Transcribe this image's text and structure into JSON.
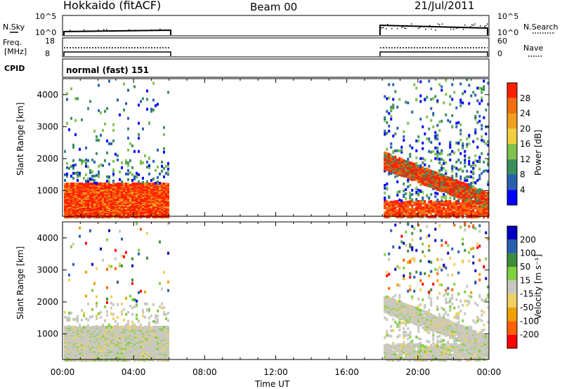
{
  "header": {
    "station": "Hokkaido (fitACF)",
    "beam": "Beam 00",
    "date": "21/Jul/2011"
  },
  "top_panels": {
    "nsky": {
      "label": "N.Sky",
      "tick_high": "10^5",
      "tick_low": "10^0"
    },
    "nsearch": {
      "label": "N.Search",
      "tick_high": "10^5",
      "tick_low": "10^0"
    },
    "freq": {
      "label": "Freq.",
      "unit": "[MHz]",
      "tick_high": "18",
      "tick_low": "8"
    },
    "nave": {
      "label": "Nave",
      "tick_high": "60",
      "tick_low": "0"
    },
    "cpid": {
      "label": "CPID",
      "value": "normal (fast) 151"
    }
  },
  "colors": {
    "power": [
      "#0000ff",
      "#2a5fb0",
      "#3c8f5c",
      "#7fc24e",
      "#f0d040",
      "#f0a020",
      "#f07010",
      "#ff2000"
    ],
    "velocity": [
      "#ff0000",
      "#ff6000",
      "#f0a000",
      "#f0d060",
      "#c8c8c0",
      "#80d040",
      "#3c8c3c",
      "#2a5fb0",
      "#0000c0"
    ]
  },
  "chart_data": [
    {
      "type": "heatmap",
      "name": "power-panel",
      "ylabel": "Slant Range [km]",
      "ylim": [
        200,
        4500
      ],
      "yticks": [
        "1000",
        "2000",
        "3000",
        "4000"
      ],
      "ytick_values": [
        1000,
        2000,
        3000,
        4000
      ],
      "xlim_hours": [
        0,
        24
      ],
      "colorbar": {
        "label": "Power [dB]",
        "ticks": [
          "4",
          "8",
          "12",
          "16",
          "20",
          "24",
          "28"
        ],
        "range": [
          0,
          32
        ]
      },
      "data_intervals_hours": [
        [
          0,
          6
        ],
        [
          18,
          24
        ]
      ]
    },
    {
      "type": "heatmap",
      "name": "velocity-panel",
      "ylabel": "Slant Range [km]",
      "ylim": [
        200,
        4500
      ],
      "yticks": [
        "1000",
        "2000",
        "3000",
        "4000"
      ],
      "ytick_values": [
        1000,
        2000,
        3000,
        4000
      ],
      "xlim_hours": [
        0,
        24
      ],
      "colorbar": {
        "label": "Velocity [m s⁻¹]",
        "ticks": [
          "200",
          "100",
          "50",
          "15",
          "-15",
          "-50",
          "-100",
          "-200"
        ]
      },
      "data_intervals_hours": [
        [
          0,
          6
        ],
        [
          18,
          24
        ]
      ]
    }
  ],
  "xaxis": {
    "ticks": [
      "00:00",
      "04:00",
      "08:00",
      "12:00",
      "16:00",
      "20:00",
      "00:00"
    ],
    "tick_hours": [
      0,
      4,
      8,
      12,
      16,
      20,
      24
    ],
    "label": "Time UT"
  }
}
